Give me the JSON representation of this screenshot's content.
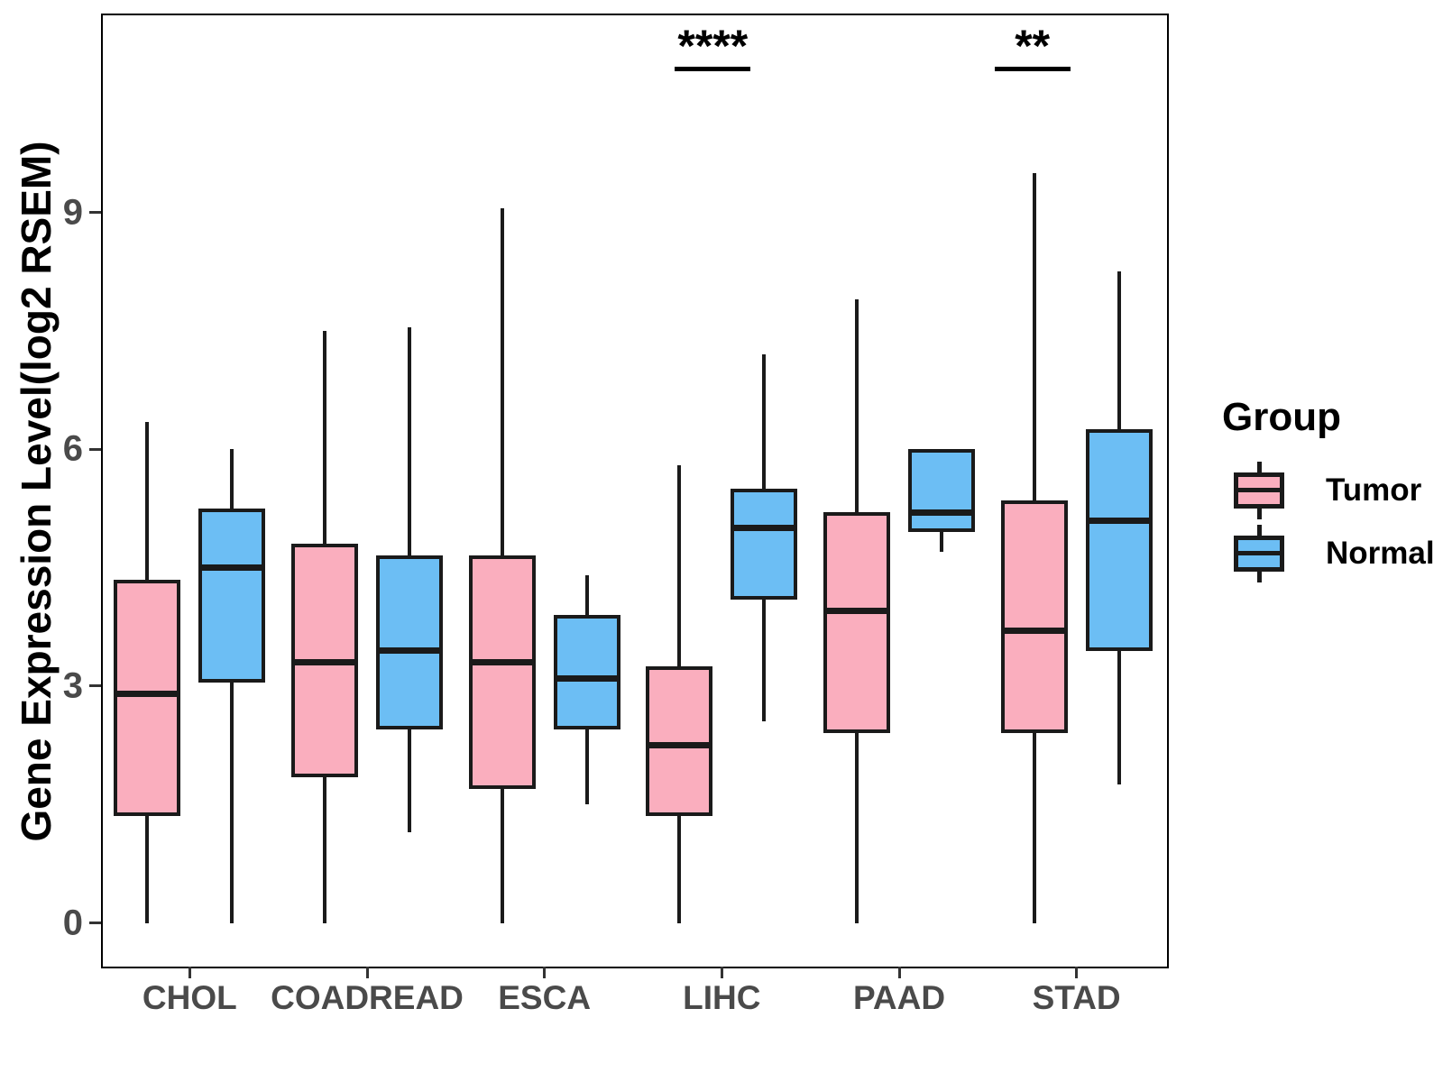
{
  "figure": {
    "y_axis": {
      "title": "Gene Expression Level(log2 RSEM)",
      "tick_labels": [
        "0",
        "3",
        "6",
        "9"
      ],
      "tick_values": [
        0,
        3,
        6,
        9
      ]
    },
    "x_axis": {
      "tick_labels": [
        "CHOL",
        "COADREAD",
        "ESCA",
        "LIHC",
        "PAAD",
        "STAD"
      ]
    },
    "legend": {
      "title": "Group",
      "items": [
        {
          "label": "Tumor",
          "color": "#FAAEBE"
        },
        {
          "label": "Normal",
          "color": "#6CBEF4"
        }
      ]
    },
    "colors": {
      "tumor_fill": "#FAAEBE",
      "normal_fill": "#6CBEF4",
      "stroke": "#1A1A1A",
      "axis_text": "#4a4a4a",
      "panel_border": "#000000"
    }
  },
  "chart_data": {
    "type": "boxplot",
    "title": "",
    "xlabel": "",
    "ylabel": "Gene Expression Level(log2 RSEM)",
    "ylim": [
      -0.53,
      11.52
    ],
    "yticks": [
      0,
      3,
      6,
      9
    ],
    "grid": false,
    "legend_position": "right",
    "categories": [
      "CHOL",
      "COADREAD",
      "ESCA",
      "LIHC",
      "PAAD",
      "STAD"
    ],
    "series": [
      {
        "name": "Tumor",
        "color": "#FAAEBE",
        "boxes": [
          {
            "category": "CHOL",
            "whisker_low": 0,
            "q1": 1.35,
            "median": 2.9,
            "q3": 4.35,
            "whisker_high": 6.35
          },
          {
            "category": "COADREAD",
            "whisker_low": 0,
            "q1": 1.85,
            "median": 3.3,
            "q3": 4.8,
            "whisker_high": 7.5
          },
          {
            "category": "ESCA",
            "whisker_low": 0,
            "q1": 1.7,
            "median": 3.3,
            "q3": 4.65,
            "whisker_high": 9.05
          },
          {
            "category": "LIHC",
            "whisker_low": 0,
            "q1": 1.35,
            "median": 2.25,
            "q3": 3.25,
            "whisker_high": 5.8
          },
          {
            "category": "PAAD",
            "whisker_low": 0,
            "q1": 2.4,
            "median": 3.95,
            "q3": 5.2,
            "whisker_high": 7.9
          },
          {
            "category": "STAD",
            "whisker_low": 0,
            "q1": 2.4,
            "median": 3.7,
            "q3": 5.35,
            "whisker_high": 9.5
          }
        ]
      },
      {
        "name": "Normal",
        "color": "#6CBEF4",
        "boxes": [
          {
            "category": "CHOL",
            "whisker_low": 0,
            "q1": 3.05,
            "median": 4.5,
            "q3": 5.25,
            "whisker_high": 6.0
          },
          {
            "category": "COADREAD",
            "whisker_low": 1.15,
            "q1": 2.45,
            "median": 3.45,
            "q3": 4.65,
            "whisker_high": 7.55
          },
          {
            "category": "ESCA",
            "whisker_low": 1.5,
            "q1": 2.45,
            "median": 3.1,
            "q3": 3.9,
            "whisker_high": 4.4
          },
          {
            "category": "LIHC",
            "whisker_low": 2.55,
            "q1": 4.1,
            "median": 5.0,
            "q3": 5.5,
            "whisker_high": 7.2
          },
          {
            "category": "PAAD",
            "whisker_low": 4.7,
            "q1": 4.95,
            "median": 5.2,
            "q3": 6.0,
            "whisker_high": 6.0
          },
          {
            "category": "STAD",
            "whisker_low": 1.75,
            "q1": 3.45,
            "median": 5.1,
            "q3": 6.25,
            "whisker_high": 8.25
          }
        ]
      }
    ],
    "annotations": [
      {
        "category": "LIHC",
        "text": "****"
      },
      {
        "category": "STAD",
        "text": "**"
      }
    ]
  }
}
